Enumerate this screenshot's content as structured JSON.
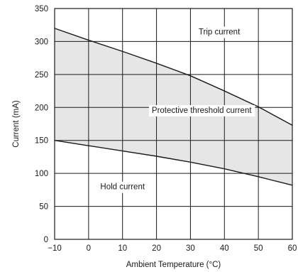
{
  "chart_data": {
    "type": "area",
    "title": "",
    "xlabel": "Ambient Temperature (°C)",
    "ylabel": "Current (mA)",
    "xlim": [
      -10,
      60
    ],
    "ylim": [
      0,
      350
    ],
    "x_ticks": [
      -10,
      0,
      10,
      20,
      30,
      40,
      50,
      60
    ],
    "x_tick_labels": [
      "−10",
      "0",
      "10",
      "20",
      "30",
      "40",
      "50",
      "60"
    ],
    "y_ticks": [
      0,
      50,
      100,
      150,
      200,
      250,
      300,
      350
    ],
    "y_tick_labels": [
      "0",
      "50",
      "100",
      "150",
      "200",
      "250",
      "300",
      "350"
    ],
    "grid": true,
    "series": [
      {
        "name": "Trip current",
        "x": [
          -10,
          0,
          10,
          20,
          30,
          40,
          50,
          60
        ],
        "y": [
          320,
          302,
          285,
          267,
          248,
          225,
          201,
          173
        ]
      },
      {
        "name": "Hold current",
        "x": [
          -10,
          0,
          10,
          20,
          30,
          40,
          50,
          60
        ],
        "y": [
          150,
          142,
          134,
          126,
          117,
          107,
          95,
          82
        ]
      }
    ],
    "band": {
      "label": "Protective threshold current",
      "between": [
        "Trip current",
        "Hold current"
      ],
      "fill_color": "#e6e6e6"
    },
    "annotations": [
      {
        "text": "Trip current",
        "x": 38.5,
        "y": 315
      },
      {
        "text": "Protective threshold current",
        "x": 33.3,
        "y": 196
      },
      {
        "text": "Hold current",
        "x": 10,
        "y": 80
      }
    ],
    "colors": {
      "line": "#1a1a1a",
      "grid": "#1a1a1a",
      "band": "#e6e6e6",
      "label_bg": "#ffffff"
    }
  }
}
